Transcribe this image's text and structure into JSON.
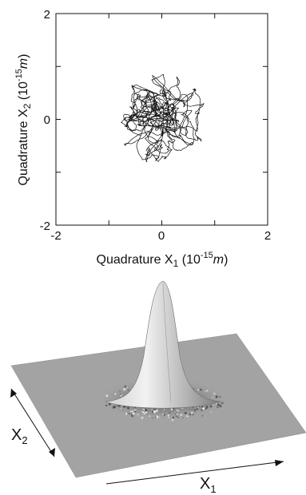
{
  "chart_data": [
    {
      "type": "scatter",
      "style": "trajectory",
      "x_tick_labels": [
        "-2",
        "0",
        "2"
      ],
      "y_tick_labels": [
        "2",
        "0",
        "-2"
      ],
      "xlabel": {
        "prefix": "Quadrature X",
        "sub": "1",
        "unit_open": " (10",
        "sup": "-15",
        "unit_var": "m",
        "unit_close": ")"
      },
      "ylabel": {
        "prefix": "Quadrature X",
        "sub": "2",
        "unit_open": " (10",
        "sup": "-15",
        "unit_var": "m",
        "unit_close": ")"
      },
      "xlim": [
        -2,
        2
      ],
      "ylim": [
        -2,
        2
      ],
      "grid": false,
      "trajectory_center": [
        0,
        0
      ],
      "trajectory_spread": 0.25,
      "trajectory_max_radius": 0.85,
      "line_color": "#111111"
    },
    {
      "type": "surface",
      "axes": [
        {
          "name": "X",
          "sub": "1"
        },
        {
          "name": "X",
          "sub": "2"
        }
      ],
      "peak_center": [
        0,
        0
      ],
      "plane_color": "#a3a3a3",
      "peak_color": "#d9d9d9"
    }
  ]
}
